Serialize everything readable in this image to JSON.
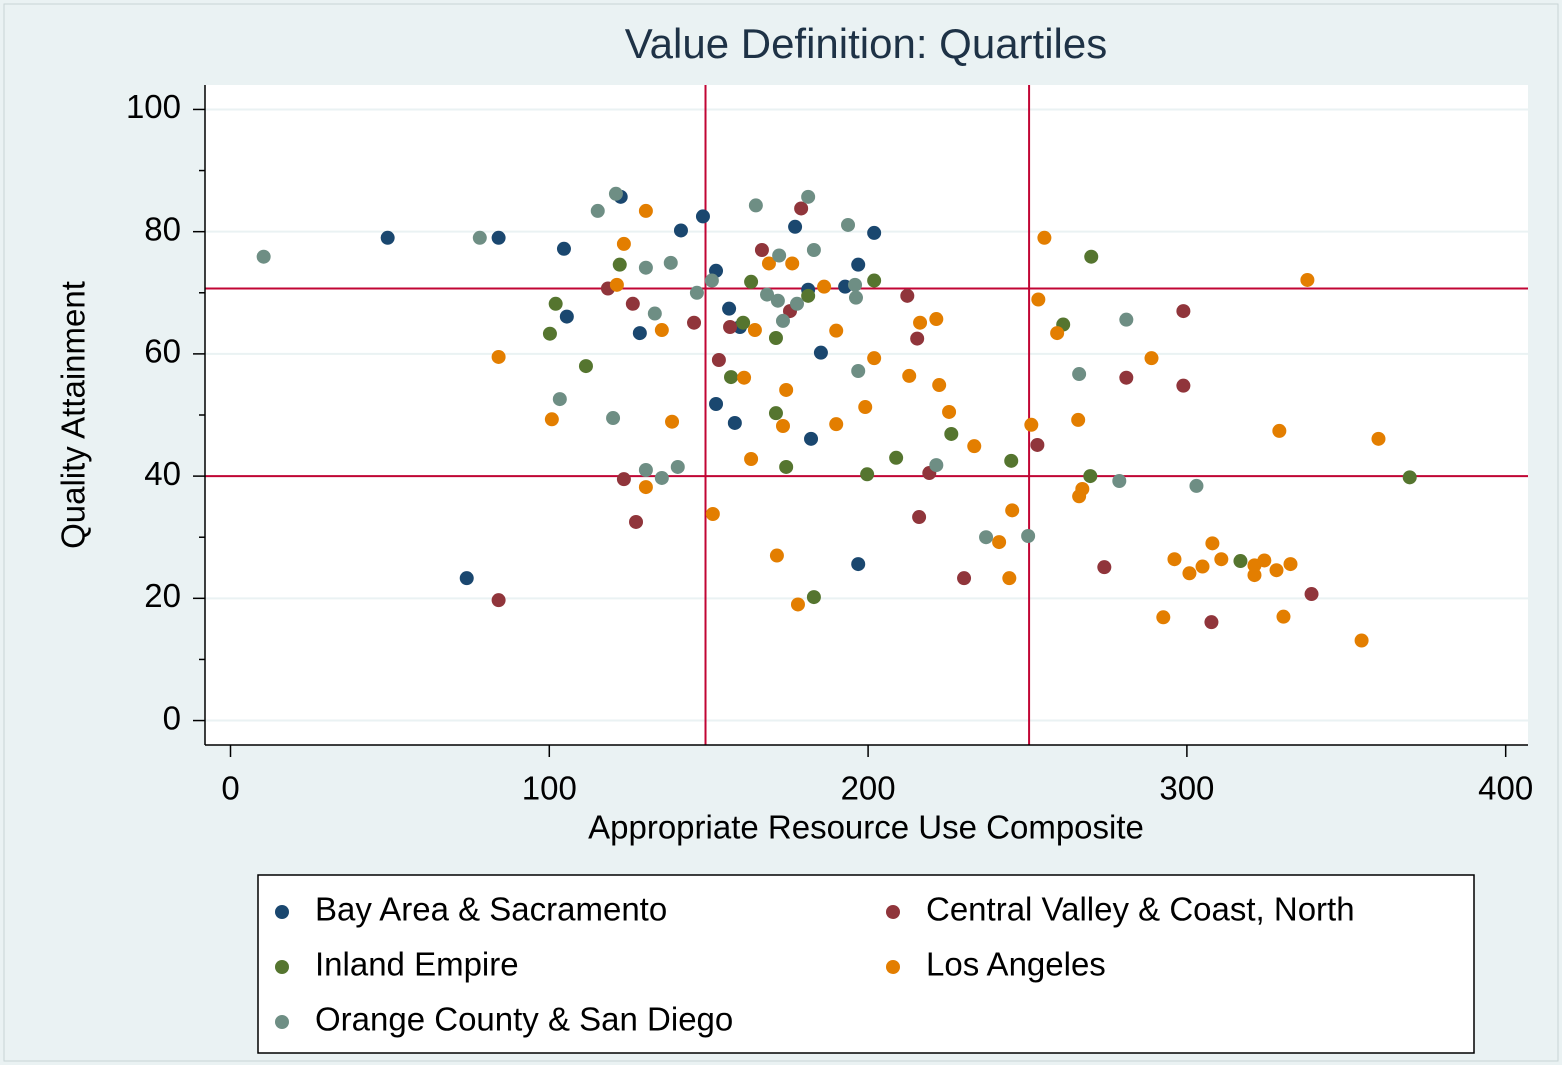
{
  "chart_data": {
    "type": "scatter",
    "title": "Value Definition: Quartiles",
    "xlabel": "Appropriate Resource Use Composite",
    "ylabel": "Quality Attainment",
    "xlim": [
      -8,
      407
    ],
    "ylim": [
      -4,
      104
    ],
    "xticks": [
      0,
      100,
      200,
      300,
      400
    ],
    "yticks": [
      0,
      20,
      40,
      60,
      80,
      100
    ],
    "yminor_ticks": [
      10,
      30,
      50,
      70,
      90
    ],
    "grid": true,
    "xlines": [
      149,
      250.5
    ],
    "ylines": [
      70.7,
      40
    ],
    "refline_color": "#c10534",
    "legend_position": "bottom",
    "series": [
      {
        "name": "Bay Area & Sacramento",
        "color": "#1a476f",
        "x": [
          49.3,
          84.1,
          104.6,
          105.5,
          122.4,
          128.4,
          141.3,
          148.2,
          152.3,
          156.4,
          159.8,
          152.3,
          158.2,
          177.1,
          181.2,
          185.2,
          182.1,
          192.8,
          196.9,
          201.9,
          74.1,
          196.9
        ],
        "y": [
          79.0,
          79.0,
          77.2,
          66.1,
          85.7,
          63.4,
          80.2,
          82.5,
          73.6,
          67.4,
          64.4,
          51.8,
          48.7,
          80.8,
          70.5,
          60.2,
          46.1,
          71.0,
          74.6,
          79.8,
          23.3,
          25.6
        ]
      },
      {
        "name": "Central Valley & Coast, North",
        "color": "#90353b",
        "x": [
          84.1,
          118.4,
          126.2,
          145.4,
          153.2,
          156.7,
          166.7,
          175.5,
          179.0,
          212.3,
          215.4,
          123.4,
          127.2,
          216.0,
          219.2,
          230.1,
          253.1,
          274.1,
          281.0,
          298.9,
          298.9,
          307.7,
          339.1
        ],
        "y": [
          19.7,
          70.7,
          68.2,
          65.1,
          59.0,
          64.4,
          77.0,
          67.0,
          83.8,
          69.5,
          62.5,
          39.5,
          32.5,
          33.3,
          40.5,
          23.3,
          45.1,
          25.1,
          56.1,
          67.0,
          54.8,
          16.1,
          20.7
        ]
      },
      {
        "name": "Inland Empire",
        "color": "#55752f",
        "x": [
          100.2,
          102.0,
          111.5,
          122.1,
          157.0,
          160.8,
          163.3,
          171.1,
          171.1,
          174.3,
          181.2,
          183.0,
          201.9,
          199.7,
          208.8,
          226.1,
          244.9,
          261.2,
          270.0,
          269.7,
          316.8,
          369.9
        ],
        "y": [
          63.3,
          68.2,
          58.0,
          74.6,
          56.2,
          65.1,
          71.8,
          62.6,
          50.3,
          41.5,
          69.5,
          20.2,
          72.0,
          40.3,
          43.0,
          46.9,
          42.5,
          64.8,
          75.9,
          40.0,
          26.1,
          39.8
        ]
      },
      {
        "name": "Los Angeles",
        "color": "#e37e00",
        "x": [
          84.1,
          100.8,
          121.2,
          123.4,
          130.3,
          130.3,
          135.3,
          138.5,
          151.3,
          161.1,
          163.3,
          164.5,
          168.9,
          171.4,
          173.3,
          174.3,
          176.2,
          178.0,
          186.2,
          190.0,
          190.0,
          199.1,
          201.9,
          212.9,
          216.3,
          221.4,
          222.3,
          225.4,
          233.3,
          241.1,
          245.2,
          244.3,
          251.2,
          253.4,
          255.3,
          259.3,
          265.9,
          266.2,
          267.2,
          288.9,
          292.6,
          296.1,
          300.8,
          304.9,
          308.0,
          310.8,
          321.2,
          321.2,
          324.3,
          328.1,
          332.5,
          329.0,
          330.3,
          337.8,
          354.8,
          360.1
        ],
        "y": [
          59.5,
          49.3,
          71.3,
          78.0,
          83.4,
          38.2,
          63.9,
          48.9,
          33.8,
          56.1,
          42.8,
          63.9,
          74.8,
          27.0,
          48.2,
          54.1,
          74.8,
          19.0,
          71.0,
          63.8,
          48.5,
          51.3,
          59.3,
          56.4,
          65.1,
          65.7,
          54.9,
          50.5,
          44.9,
          29.2,
          34.4,
          23.3,
          48.4,
          68.9,
          79.0,
          63.4,
          49.2,
          36.7,
          37.9,
          59.3,
          16.9,
          26.4,
          24.1,
          25.2,
          29.0,
          26.4,
          25.4,
          23.8,
          26.2,
          24.6,
          25.6,
          47.4,
          17.0,
          72.1,
          13.1,
          46.1
        ]
      },
      {
        "name": "Orange County & San Diego",
        "color": "#6e8e84",
        "x": [
          10.4,
          78.2,
          103.3,
          115.2,
          120.0,
          120.9,
          130.3,
          130.3,
          133.1,
          135.3,
          138.1,
          140.3,
          146.3,
          151.0,
          164.8,
          168.3,
          171.7,
          172.1,
          173.3,
          177.7,
          181.2,
          183.0,
          193.7,
          195.9,
          196.2,
          196.9,
          221.4,
          237.0,
          250.2,
          266.2,
          278.8,
          281.0,
          303.0
        ],
        "y": [
          75.9,
          79.0,
          52.6,
          83.4,
          49.5,
          86.2,
          74.1,
          41.0,
          66.6,
          39.7,
          74.9,
          41.5,
          70.0,
          72.0,
          84.3,
          69.7,
          68.7,
          76.1,
          65.4,
          68.2,
          85.7,
          77.0,
          81.1,
          71.3,
          69.2,
          57.2,
          41.8,
          30.0,
          30.2,
          56.7,
          39.2,
          65.6,
          38.4
        ]
      }
    ]
  }
}
